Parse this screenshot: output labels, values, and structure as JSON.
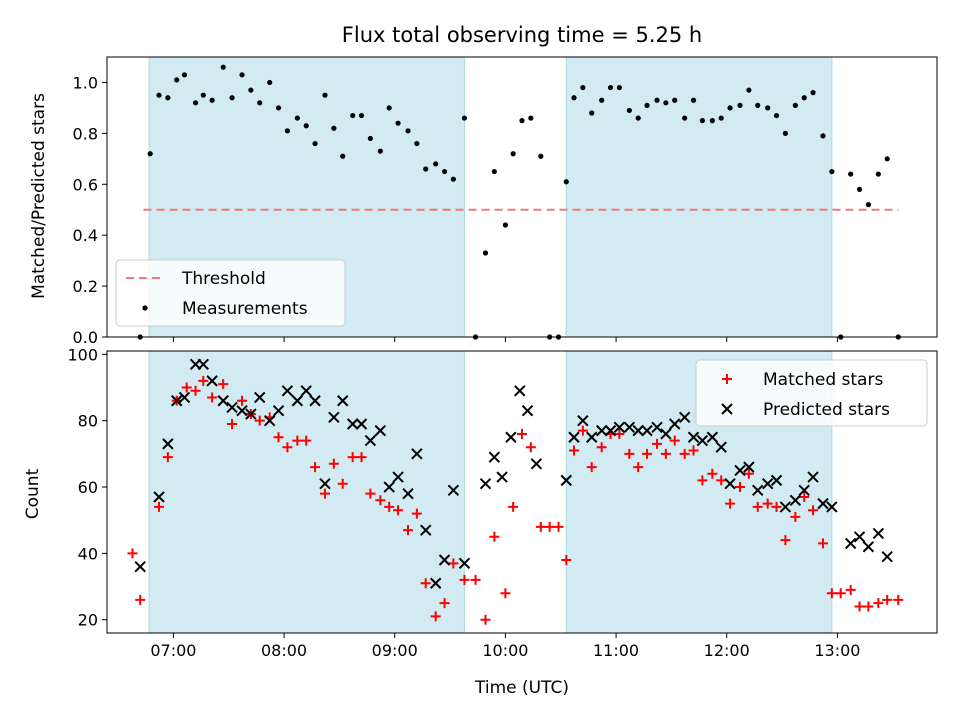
{
  "chart_data": [
    {
      "type": "scatter",
      "title": "Flux total observing time = 5.25 h",
      "ylabel": "Matched/Predicted stars",
      "xlabel": "",
      "xlim_hours": [
        6.4,
        13.9
      ],
      "ylim": [
        0,
        1.1
      ],
      "yticks": [
        {
          "v": 0.0,
          "label": "0.0"
        },
        {
          "v": 0.2,
          "label": "0.2"
        },
        {
          "v": 0.4,
          "label": "0.4"
        },
        {
          "v": 0.6,
          "label": "0.6"
        },
        {
          "v": 0.8,
          "label": "0.8"
        },
        {
          "v": 1.0,
          "label": "1.0"
        }
      ],
      "threshold": {
        "name": "Threshold",
        "value": 0.5,
        "x_from": 6.73,
        "x_to": 13.55,
        "color": "#f07878"
      },
      "shaded_intervals": [
        [
          6.78,
          9.63
        ],
        [
          10.55,
          12.95
        ]
      ],
      "shade_color": "#add8e6",
      "legend": {
        "position": "lower-left",
        "entries": [
          "Threshold",
          "Measurements"
        ]
      },
      "series": [
        {
          "name": "Measurements",
          "marker": "dot",
          "color": "#000000",
          "x": [
            6.7,
            6.79,
            6.87,
            6.95,
            7.03,
            7.1,
            7.2,
            7.27,
            7.35,
            7.45,
            7.53,
            7.62,
            7.7,
            7.78,
            7.87,
            7.95,
            8.03,
            8.12,
            8.2,
            8.28,
            8.37,
            8.45,
            8.53,
            8.62,
            8.7,
            8.78,
            8.87,
            8.95,
            9.03,
            9.12,
            9.2,
            9.28,
            9.37,
            9.45,
            9.53,
            9.63,
            9.73,
            9.82,
            9.9,
            10.0,
            10.07,
            10.15,
            10.23,
            10.32,
            10.4,
            10.48,
            10.55,
            10.62,
            10.7,
            10.78,
            10.87,
            10.95,
            11.03,
            11.12,
            11.2,
            11.28,
            11.37,
            11.45,
            11.53,
            11.62,
            11.7,
            11.78,
            11.87,
            11.95,
            12.03,
            12.12,
            12.2,
            12.28,
            12.37,
            12.45,
            12.53,
            12.62,
            12.7,
            12.78,
            12.87,
            12.95,
            13.03,
            13.12,
            13.2,
            13.28,
            13.37,
            13.45,
            13.55
          ],
          "y": [
            0.0,
            0.72,
            0.95,
            0.94,
            1.01,
            1.03,
            0.92,
            0.95,
            0.93,
            1.06,
            0.94,
            1.03,
            0.97,
            0.92,
            1.0,
            0.9,
            0.81,
            0.86,
            0.83,
            0.76,
            0.95,
            0.82,
            0.71,
            0.87,
            0.87,
            0.78,
            0.73,
            0.9,
            0.84,
            0.81,
            0.76,
            0.66,
            0.68,
            0.65,
            0.62,
            0.86,
            0.0,
            0.33,
            0.65,
            0.44,
            0.72,
            0.85,
            0.86,
            0.71,
            0.0,
            0.0,
            0.61,
            0.94,
            0.98,
            0.88,
            0.93,
            0.98,
            0.98,
            0.89,
            0.86,
            0.91,
            0.93,
            0.92,
            0.93,
            0.86,
            0.93,
            0.85,
            0.85,
            0.86,
            0.9,
            0.91,
            0.97,
            0.91,
            0.9,
            0.87,
            0.8,
            0.91,
            0.94,
            0.96,
            0.79,
            0.65,
            0.0,
            0.64,
            0.58,
            0.52,
            0.64,
            0.7,
            0.0
          ]
        }
      ]
    },
    {
      "type": "scatter",
      "title": "",
      "ylabel": "Count",
      "xlabel": "Time (UTC)",
      "xlim_hours": [
        6.4,
        13.9
      ],
      "ylim": [
        16,
        101
      ],
      "yticks": [
        {
          "v": 20,
          "label": "20"
        },
        {
          "v": 40,
          "label": "40"
        },
        {
          "v": 60,
          "label": "60"
        },
        {
          "v": 80,
          "label": "80"
        },
        {
          "v": 100,
          "label": "100"
        }
      ],
      "xticks": [
        {
          "v": 7,
          "label": "07:00"
        },
        {
          "v": 8,
          "label": "08:00"
        },
        {
          "v": 9,
          "label": "09:00"
        },
        {
          "v": 10,
          "label": "10:00"
        },
        {
          "v": 11,
          "label": "11:00"
        },
        {
          "v": 12,
          "label": "12:00"
        },
        {
          "v": 13,
          "label": "13:00"
        }
      ],
      "shaded_intervals": [
        [
          6.78,
          9.63
        ],
        [
          10.55,
          12.95
        ]
      ],
      "shade_color": "#add8e6",
      "legend": {
        "position": "upper-right",
        "entries": [
          "Matched stars",
          "Predicted stars"
        ]
      },
      "series": [
        {
          "name": "Matched stars",
          "marker": "plus",
          "color": "#ff0000",
          "x": [
            6.63,
            6.7,
            6.87,
            6.95,
            7.03,
            7.12,
            7.2,
            7.27,
            7.35,
            7.45,
            7.53,
            7.62,
            7.7,
            7.78,
            7.87,
            7.95,
            8.03,
            8.12,
            8.2,
            8.28,
            8.37,
            8.45,
            8.53,
            8.62,
            8.7,
            8.78,
            8.87,
            8.95,
            9.03,
            9.12,
            9.2,
            9.28,
            9.37,
            9.45,
            9.53,
            9.63,
            9.73,
            9.82,
            9.9,
            10.0,
            10.07,
            10.15,
            10.23,
            10.32,
            10.4,
            10.48,
            10.55,
            10.62,
            10.7,
            10.78,
            10.87,
            10.95,
            11.03,
            11.12,
            11.2,
            11.28,
            11.37,
            11.45,
            11.53,
            11.62,
            11.7,
            11.78,
            11.87,
            11.95,
            12.03,
            12.12,
            12.2,
            12.28,
            12.37,
            12.45,
            12.53,
            12.62,
            12.7,
            12.78,
            12.87,
            12.95,
            13.03,
            13.12,
            13.2,
            13.28,
            13.37,
            13.45,
            13.55
          ],
          "y": [
            40,
            26,
            54,
            69,
            86,
            90,
            89,
            92,
            87,
            91,
            79,
            86,
            82,
            80,
            81,
            75,
            72,
            74,
            74,
            66,
            58,
            67,
            61,
            69,
            69,
            58,
            56,
            54,
            53,
            47,
            52,
            31,
            21,
            25,
            37,
            32,
            32,
            20,
            45,
            28,
            54,
            76,
            72,
            48,
            48,
            48,
            38,
            71,
            77,
            66,
            72,
            76,
            76,
            70,
            66,
            70,
            73,
            70,
            74,
            70,
            71,
            62,
            64,
            62,
            55,
            60,
            64,
            54,
            55,
            54,
            44,
            51,
            57,
            53,
            43,
            28,
            28,
            29,
            24,
            24,
            25,
            26,
            26
          ]
        },
        {
          "name": "Predicted stars",
          "marker": "x",
          "color": "#000000",
          "x": [
            6.7,
            6.87,
            6.95,
            7.03,
            7.1,
            7.2,
            7.27,
            7.35,
            7.45,
            7.53,
            7.62,
            7.7,
            7.78,
            7.87,
            7.95,
            8.03,
            8.12,
            8.2,
            8.28,
            8.37,
            8.45,
            8.53,
            8.62,
            8.7,
            8.78,
            8.87,
            8.95,
            9.03,
            9.12,
            9.2,
            9.28,
            9.37,
            9.45,
            9.53,
            9.63,
            9.82,
            9.9,
            9.97,
            10.05,
            10.13,
            10.2,
            10.28,
            10.55,
            10.62,
            10.7,
            10.78,
            10.87,
            10.95,
            11.03,
            11.12,
            11.2,
            11.28,
            11.37,
            11.45,
            11.53,
            11.62,
            11.7,
            11.78,
            11.87,
            11.95,
            12.03,
            12.12,
            12.2,
            12.28,
            12.37,
            12.45,
            12.53,
            12.62,
            12.7,
            12.78,
            12.87,
            12.95,
            13.12,
            13.2,
            13.28,
            13.37,
            13.45
          ],
          "y": [
            36,
            57,
            73,
            86,
            87,
            97,
            97,
            92,
            86,
            84,
            83,
            82,
            87,
            80,
            83,
            89,
            86,
            89,
            86,
            61,
            81,
            86,
            79,
            79,
            74,
            77,
            60,
            63,
            58,
            70,
            47,
            31,
            38,
            59,
            37,
            61,
            69,
            63,
            75,
            89,
            83,
            67,
            62,
            75,
            80,
            75,
            77,
            77,
            78,
            78,
            77,
            77,
            78,
            76,
            79,
            81,
            75,
            74,
            75,
            72,
            61,
            65,
            66,
            59,
            61,
            62,
            54,
            56,
            59,
            63,
            55,
            54,
            43,
            45,
            42,
            46,
            39
          ]
        }
      ]
    }
  ]
}
